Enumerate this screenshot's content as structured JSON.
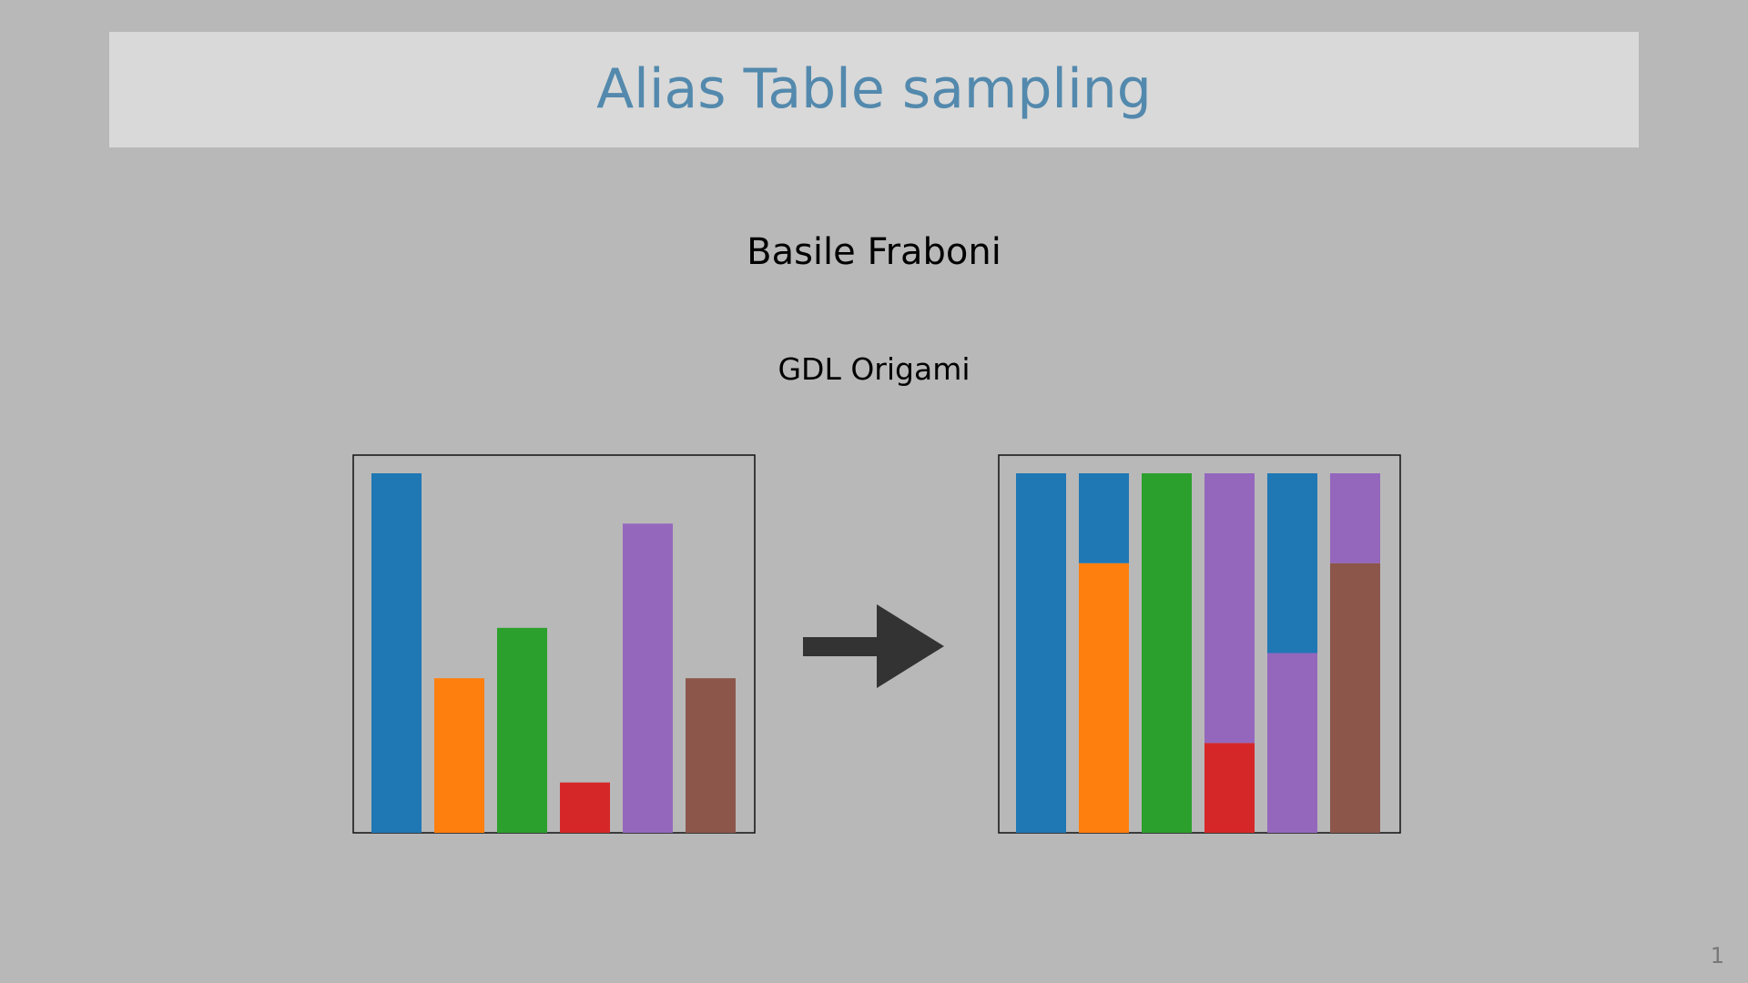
{
  "slide": {
    "title": "Alias Table sampling",
    "author": "Basile Fraboni",
    "institute": "GDL Origami",
    "page_number": "1"
  },
  "colors": {
    "background": "#b8b8b8",
    "banner": "#d9d9d9",
    "title": "#5389ad",
    "arrow": "#333333"
  },
  "chart_data": [
    {
      "type": "bar",
      "title": "",
      "categories": [
        "",
        "",
        "",
        "",
        "",
        ""
      ],
      "values": [
        1.0,
        0.43,
        0.57,
        0.14,
        0.86,
        0.43
      ],
      "colors": [
        "#1f77b4",
        "#ff7f0e",
        "#2ca02c",
        "#d62728",
        "#9467bd",
        "#8c564b"
      ],
      "ylim": [
        0,
        1
      ],
      "grid": false,
      "legend": "none"
    },
    {
      "type": "bar",
      "stacked": true,
      "title": "",
      "categories": [
        "",
        "",
        "",
        "",
        "",
        ""
      ],
      "series": [
        {
          "values": [
            1.0,
            0.75,
            1.0,
            0.25,
            0.5,
            0.75
          ],
          "colors": [
            "#1f77b4",
            "#ff7f0e",
            "#2ca02c",
            "#d62728",
            "#9467bd",
            "#8c564b"
          ]
        },
        {
          "values": [
            0,
            0.25,
            0,
            0.75,
            0.5,
            0.25
          ],
          "colors": [
            "#1f77b4",
            "#1f77b4",
            "#2ca02c",
            "#9467bd",
            "#1f77b4",
            "#9467bd"
          ]
        }
      ],
      "ylim": [
        0,
        1
      ],
      "grid": false,
      "legend": "none"
    }
  ]
}
